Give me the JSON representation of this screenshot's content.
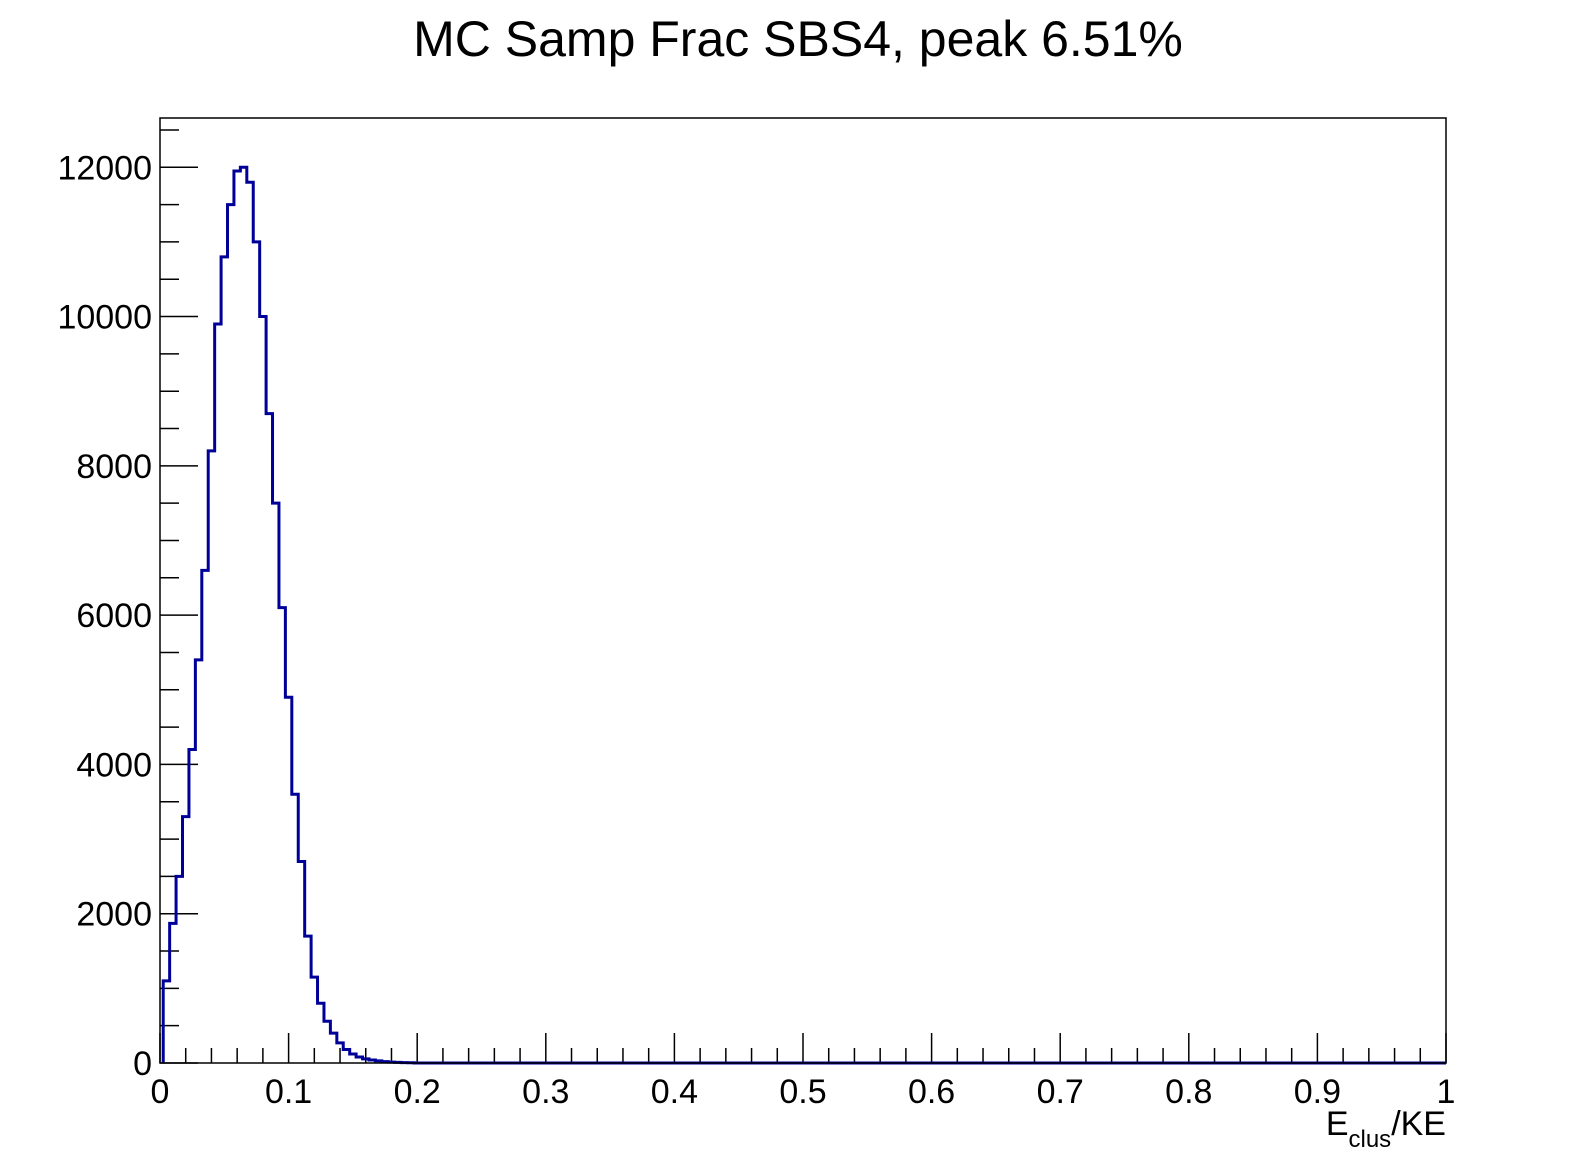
{
  "chart_data": {
    "type": "histogram",
    "title": "MC Samp Frac SBS4, peak 6.51%",
    "xlabel": {
      "main": "E",
      "sub": "clus",
      "rest": "/KE"
    },
    "ylabel": "",
    "xlim": [
      0,
      1
    ],
    "ylim": [
      0,
      12660
    ],
    "bin_width": 0.005,
    "xticks": [
      0,
      0.1,
      0.2,
      0.3,
      0.4,
      0.5,
      0.6,
      0.7,
      0.8,
      0.9,
      1
    ],
    "xtick_labels": [
      "0",
      "0.1",
      "0.2",
      "0.3",
      "0.4",
      "0.5",
      "0.6",
      "0.7",
      "0.8",
      "0.9",
      "1"
    ],
    "yticks": [
      0,
      2000,
      4000,
      6000,
      8000,
      10000,
      12000
    ],
    "ytick_labels": [
      "0",
      "2000",
      "4000",
      "6000",
      "8000",
      "10000",
      "12000"
    ],
    "grid": false,
    "line_color": "#000099",
    "series": [
      {
        "x": [
          0.005,
          0.01,
          0.015,
          0.02,
          0.025,
          0.03,
          0.035,
          0.04,
          0.045,
          0.05,
          0.055,
          0.06,
          0.065,
          0.07,
          0.075,
          0.08,
          0.085,
          0.09,
          0.095,
          0.1,
          0.105,
          0.11,
          0.115,
          0.12,
          0.125,
          0.13,
          0.135,
          0.14,
          0.145,
          0.15,
          0.155,
          0.16,
          0.165,
          0.17,
          0.175,
          0.18,
          0.185,
          0.19,
          0.195
        ],
        "values": [
          1100,
          1870,
          2500,
          3300,
          4200,
          5400,
          6600,
          8200,
          9900,
          10800,
          11500,
          11950,
          12000,
          11800,
          11000,
          10000,
          8700,
          7500,
          6100,
          4900,
          3600,
          2700,
          1700,
          1150,
          800,
          560,
          400,
          270,
          180,
          120,
          80,
          55,
          40,
          28,
          18,
          12,
          8,
          5,
          3
        ]
      }
    ]
  }
}
